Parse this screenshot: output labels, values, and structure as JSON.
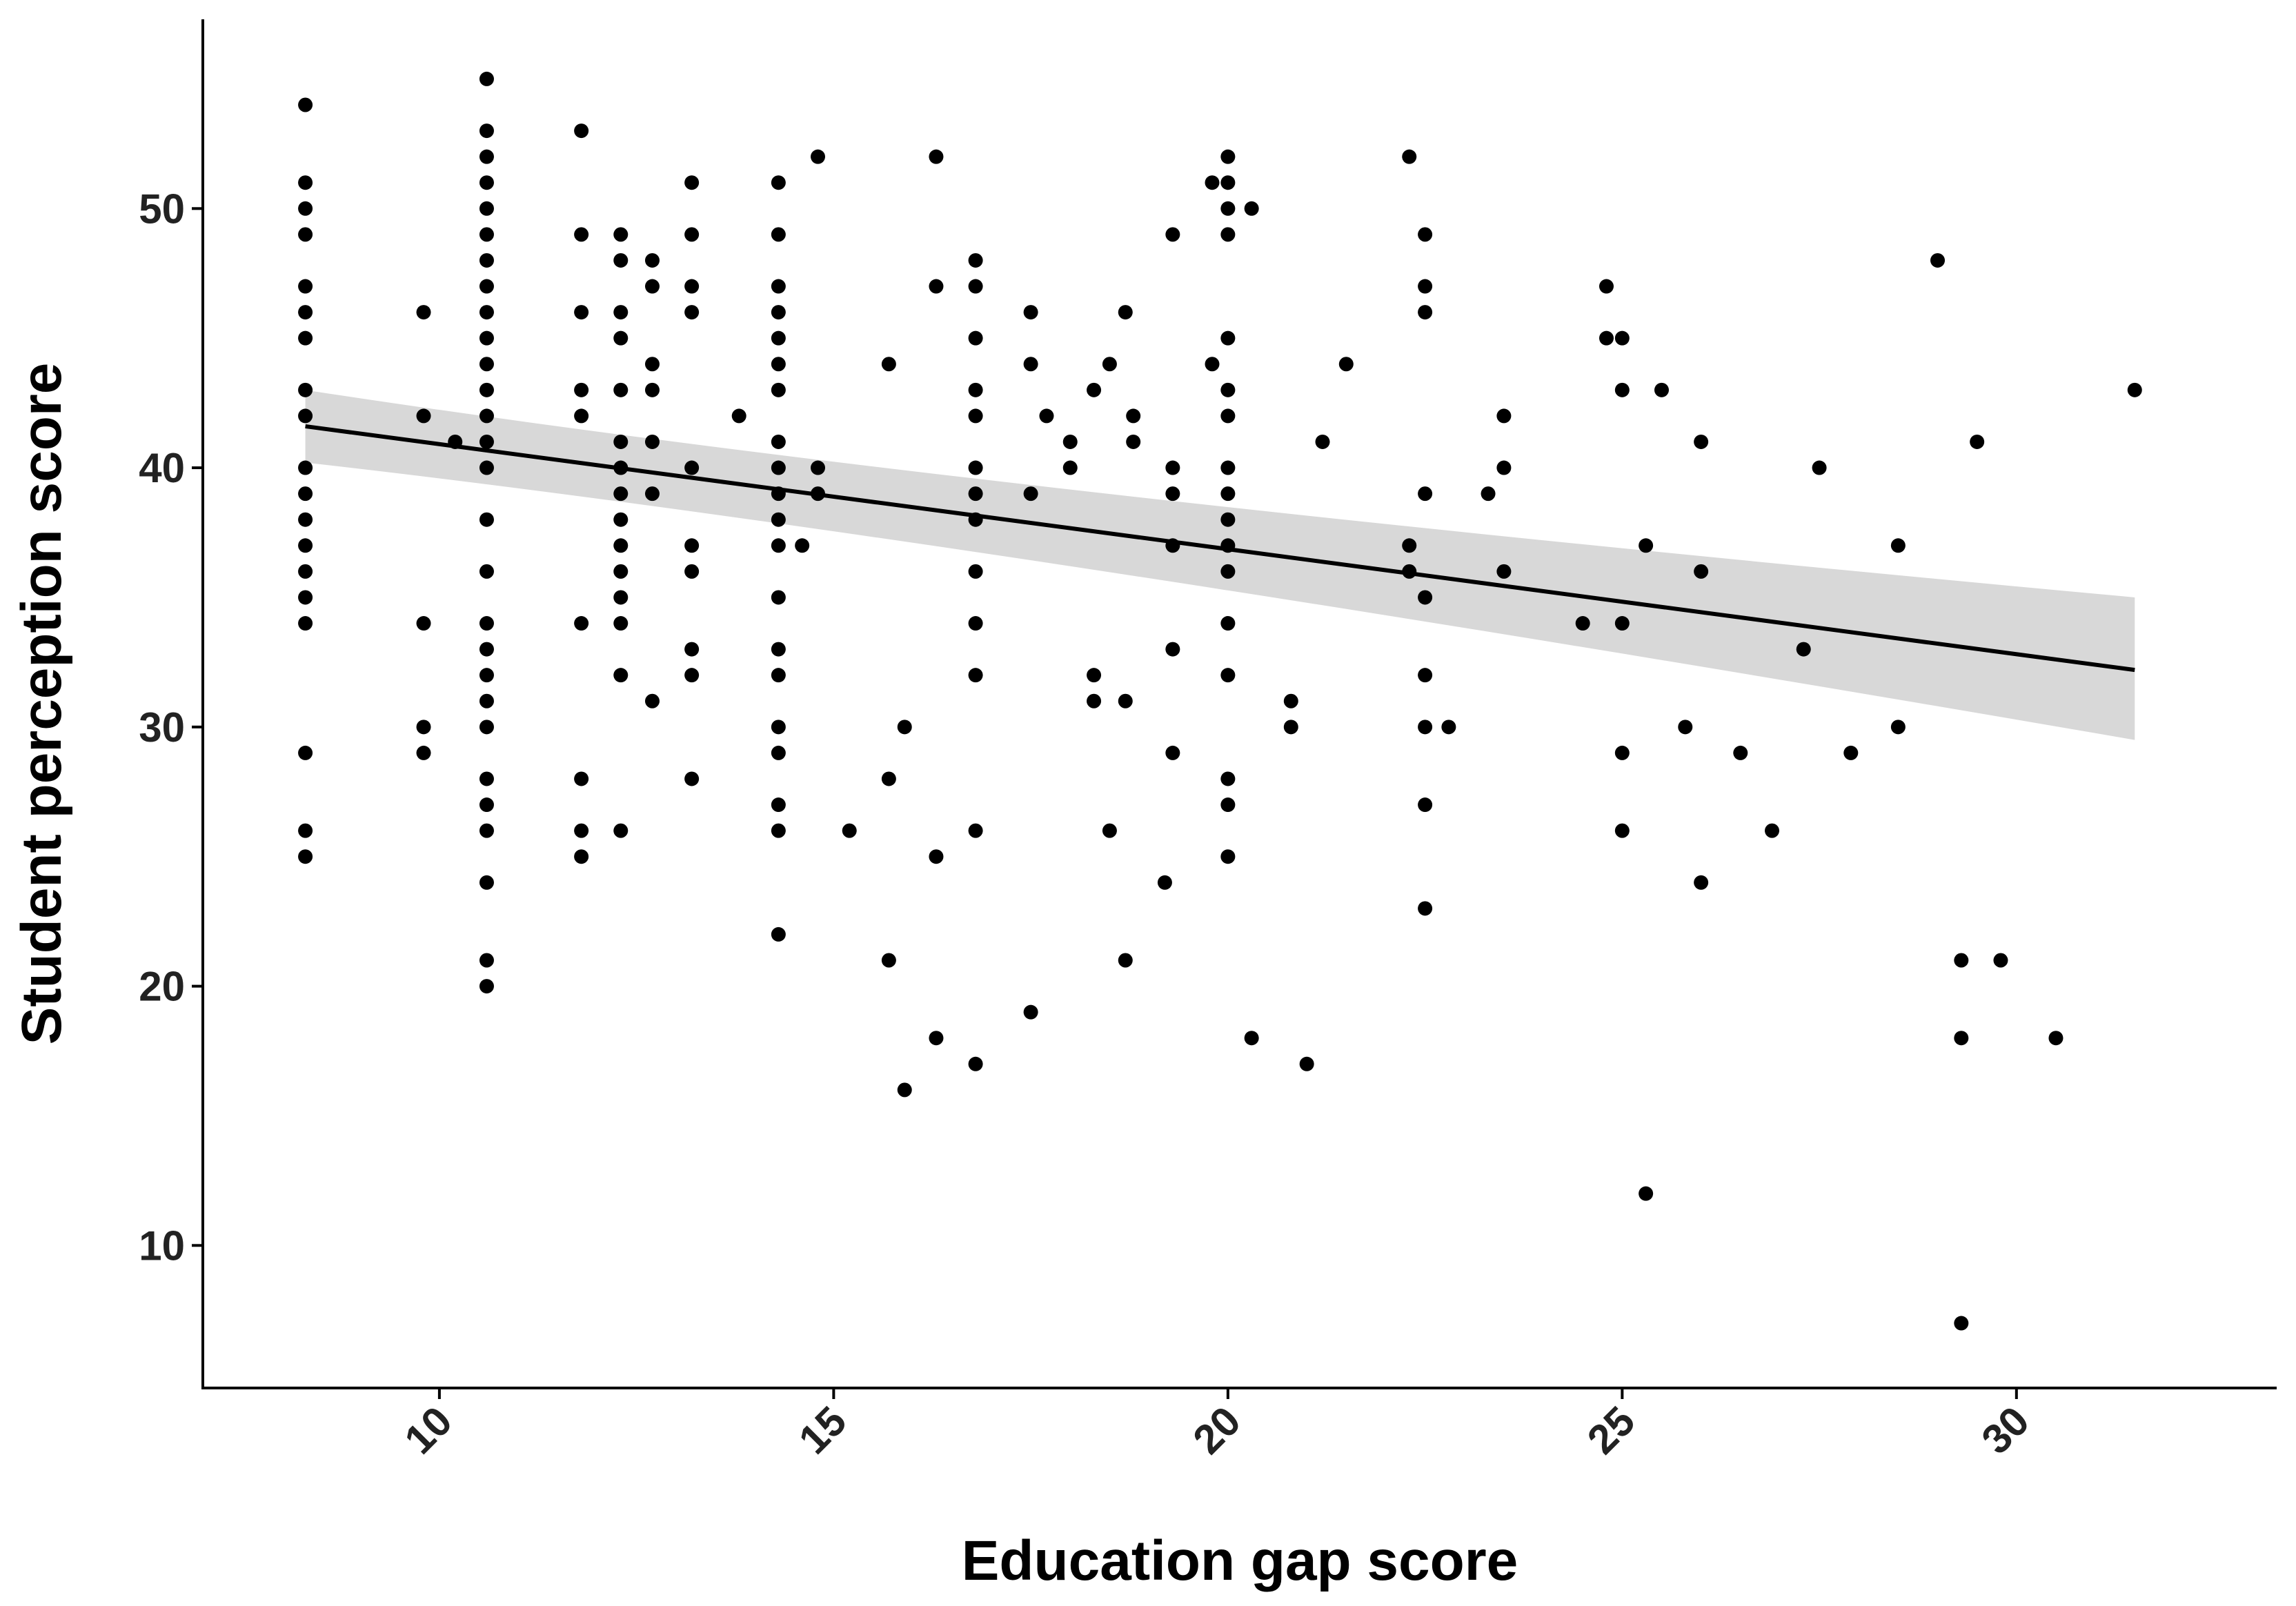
{
  "chart_data": {
    "type": "scatter",
    "title": "",
    "xlabel": "Education gap score",
    "ylabel": "Student perception score",
    "xlim": [
      7.0,
      33.3
    ],
    "ylim": [
      4.5,
      57.3
    ],
    "x_ticks": [
      10,
      15,
      20,
      25,
      30
    ],
    "y_ticks": [
      10,
      20,
      30,
      40,
      50
    ],
    "x_tick_labels": [
      "10",
      "15",
      "20",
      "25",
      "30"
    ],
    "y_tick_labels": [
      "10",
      "20",
      "30",
      "40",
      "50"
    ],
    "x_tick_rotation": -45,
    "grid": false,
    "legend": "none",
    "fit": {
      "type": "linear regression",
      "x": [
        8.3,
        31.5
      ],
      "y": [
        41.6,
        32.2
      ],
      "ci_lower": [
        40.2,
        29.5
      ],
      "ci_upper": [
        43.0,
        35.0
      ]
    },
    "points": [
      [
        8.3,
        54
      ],
      [
        8.3,
        51
      ],
      [
        8.3,
        50
      ],
      [
        8.3,
        49
      ],
      [
        8.3,
        47
      ],
      [
        8.3,
        46
      ],
      [
        8.3,
        45
      ],
      [
        8.3,
        43
      ],
      [
        8.3,
        42
      ],
      [
        8.3,
        40
      ],
      [
        8.3,
        39
      ],
      [
        8.3,
        38
      ],
      [
        8.3,
        37
      ],
      [
        8.3,
        36
      ],
      [
        8.3,
        35
      ],
      [
        8.3,
        34
      ],
      [
        8.3,
        29
      ],
      [
        8.3,
        26
      ],
      [
        8.3,
        25
      ],
      [
        9.8,
        46
      ],
      [
        9.8,
        42
      ],
      [
        9.8,
        34
      ],
      [
        9.8,
        30
      ],
      [
        9.8,
        29
      ],
      [
        10.2,
        41
      ],
      [
        10.6,
        55
      ],
      [
        10.6,
        53
      ],
      [
        10.6,
        52
      ],
      [
        10.6,
        51
      ],
      [
        10.6,
        50
      ],
      [
        10.6,
        49
      ],
      [
        10.6,
        48
      ],
      [
        10.6,
        47
      ],
      [
        10.6,
        46
      ],
      [
        10.6,
        45
      ],
      [
        10.6,
        44
      ],
      [
        10.6,
        43
      ],
      [
        10.6,
        42
      ],
      [
        10.6,
        41
      ],
      [
        10.6,
        40
      ],
      [
        10.6,
        38
      ],
      [
        10.6,
        36
      ],
      [
        10.6,
        34
      ],
      [
        10.6,
        33
      ],
      [
        10.6,
        32
      ],
      [
        10.6,
        31
      ],
      [
        10.6,
        30
      ],
      [
        10.6,
        28
      ],
      [
        10.6,
        27
      ],
      [
        10.6,
        26
      ],
      [
        10.6,
        24
      ],
      [
        10.6,
        21
      ],
      [
        10.6,
        20
      ],
      [
        11.8,
        53
      ],
      [
        11.8,
        49
      ],
      [
        11.8,
        46
      ],
      [
        11.8,
        43
      ],
      [
        11.8,
        42
      ],
      [
        11.8,
        34
      ],
      [
        11.8,
        28
      ],
      [
        11.8,
        26
      ],
      [
        11.8,
        25
      ],
      [
        12.3,
        49
      ],
      [
        12.3,
        48
      ],
      [
        12.3,
        46
      ],
      [
        12.3,
        45
      ],
      [
        12.3,
        43
      ],
      [
        12.3,
        41
      ],
      [
        12.3,
        40
      ],
      [
        12.3,
        39
      ],
      [
        12.3,
        38
      ],
      [
        12.3,
        37
      ],
      [
        12.3,
        36
      ],
      [
        12.3,
        35
      ],
      [
        12.3,
        34
      ],
      [
        12.3,
        32
      ],
      [
        12.3,
        26
      ],
      [
        12.7,
        48
      ],
      [
        12.7,
        47
      ],
      [
        12.7,
        44
      ],
      [
        12.7,
        43
      ],
      [
        12.7,
        41
      ],
      [
        12.7,
        39
      ],
      [
        12.7,
        31
      ],
      [
        13.2,
        51
      ],
      [
        13.2,
        49
      ],
      [
        13.2,
        47
      ],
      [
        13.2,
        46
      ],
      [
        13.2,
        40
      ],
      [
        13.2,
        37
      ],
      [
        13.2,
        36
      ],
      [
        13.2,
        33
      ],
      [
        13.2,
        32
      ],
      [
        13.2,
        28
      ],
      [
        13.8,
        42
      ],
      [
        14.3,
        51
      ],
      [
        14.3,
        49
      ],
      [
        14.3,
        47
      ],
      [
        14.3,
        46
      ],
      [
        14.3,
        45
      ],
      [
        14.3,
        44
      ],
      [
        14.3,
        43
      ],
      [
        14.3,
        41
      ],
      [
        14.3,
        40
      ],
      [
        14.3,
        39
      ],
      [
        14.3,
        38
      ],
      [
        14.3,
        37
      ],
      [
        14.3,
        35
      ],
      [
        14.3,
        33
      ],
      [
        14.3,
        32
      ],
      [
        14.3,
        30
      ],
      [
        14.3,
        29
      ],
      [
        14.3,
        27
      ],
      [
        14.3,
        26
      ],
      [
        14.3,
        22
      ],
      [
        14.6,
        37
      ],
      [
        14.8,
        52
      ],
      [
        14.8,
        40
      ],
      [
        14.8,
        39
      ],
      [
        15.2,
        26
      ],
      [
        15.7,
        44
      ],
      [
        15.7,
        28
      ],
      [
        15.7,
        21
      ],
      [
        15.9,
        30
      ],
      [
        15.9,
        16
      ],
      [
        16.3,
        52
      ],
      [
        16.3,
        47
      ],
      [
        16.3,
        25
      ],
      [
        16.3,
        18
      ],
      [
        16.8,
        48
      ],
      [
        16.8,
        47
      ],
      [
        16.8,
        45
      ],
      [
        16.8,
        43
      ],
      [
        16.8,
        42
      ],
      [
        16.8,
        40
      ],
      [
        16.8,
        39
      ],
      [
        16.8,
        38
      ],
      [
        16.8,
        36
      ],
      [
        16.8,
        34
      ],
      [
        16.8,
        32
      ],
      [
        16.8,
        26
      ],
      [
        16.8,
        17
      ],
      [
        17.5,
        46
      ],
      [
        17.5,
        44
      ],
      [
        17.5,
        39
      ],
      [
        17.5,
        19
      ],
      [
        17.7,
        42
      ],
      [
        18.0,
        41
      ],
      [
        18.0,
        40
      ],
      [
        18.3,
        43
      ],
      [
        18.3,
        32
      ],
      [
        18.3,
        31
      ],
      [
        18.5,
        44
      ],
      [
        18.5,
        26
      ],
      [
        18.7,
        46
      ],
      [
        18.7,
        31
      ],
      [
        18.7,
        21
      ],
      [
        18.8,
        42
      ],
      [
        18.8,
        41
      ],
      [
        19.2,
        24
      ],
      [
        19.3,
        49
      ],
      [
        19.3,
        40
      ],
      [
        19.3,
        39
      ],
      [
        19.3,
        37
      ],
      [
        19.3,
        33
      ],
      [
        19.3,
        29
      ],
      [
        19.8,
        51
      ],
      [
        19.8,
        44
      ],
      [
        20.0,
        52
      ],
      [
        20.0,
        51
      ],
      [
        20.0,
        50
      ],
      [
        20.0,
        49
      ],
      [
        20.0,
        45
      ],
      [
        20.0,
        43
      ],
      [
        20.0,
        42
      ],
      [
        20.0,
        40
      ],
      [
        20.0,
        39
      ],
      [
        20.0,
        38
      ],
      [
        20.0,
        37
      ],
      [
        20.0,
        36
      ],
      [
        20.0,
        34
      ],
      [
        20.0,
        32
      ],
      [
        20.0,
        28
      ],
      [
        20.0,
        27
      ],
      [
        20.0,
        25
      ],
      [
        20.3,
        50
      ],
      [
        20.3,
        18
      ],
      [
        20.8,
        31
      ],
      [
        20.8,
        30
      ],
      [
        21.0,
        17
      ],
      [
        21.2,
        41
      ],
      [
        21.5,
        44
      ],
      [
        22.3,
        52
      ],
      [
        22.3,
        37
      ],
      [
        22.3,
        36
      ],
      [
        22.5,
        49
      ],
      [
        22.5,
        47
      ],
      [
        22.5,
        46
      ],
      [
        22.5,
        39
      ],
      [
        22.5,
        35
      ],
      [
        22.5,
        32
      ],
      [
        22.5,
        30
      ],
      [
        22.5,
        27
      ],
      [
        22.5,
        23
      ],
      [
        22.8,
        30
      ],
      [
        23.3,
        39
      ],
      [
        23.5,
        42
      ],
      [
        23.5,
        40
      ],
      [
        23.5,
        36
      ],
      [
        24.5,
        34
      ],
      [
        24.8,
        47
      ],
      [
        24.8,
        45
      ],
      [
        25.0,
        45
      ],
      [
        25.0,
        43
      ],
      [
        25.0,
        34
      ],
      [
        25.0,
        29
      ],
      [
        25.0,
        26
      ],
      [
        25.3,
        37
      ],
      [
        25.3,
        12
      ],
      [
        25.5,
        43
      ],
      [
        25.8,
        30
      ],
      [
        26.0,
        41
      ],
      [
        26.0,
        36
      ],
      [
        26.0,
        24
      ],
      [
        26.5,
        29
      ],
      [
        26.9,
        26
      ],
      [
        27.3,
        33
      ],
      [
        27.5,
        40
      ],
      [
        27.9,
        29
      ],
      [
        28.5,
        37
      ],
      [
        28.5,
        30
      ],
      [
        29.0,
        48
      ],
      [
        29.3,
        21
      ],
      [
        29.3,
        18
      ],
      [
        29.3,
        7
      ],
      [
        29.5,
        41
      ],
      [
        29.8,
        21
      ],
      [
        30.5,
        18
      ],
      [
        31.5,
        43
      ]
    ]
  }
}
